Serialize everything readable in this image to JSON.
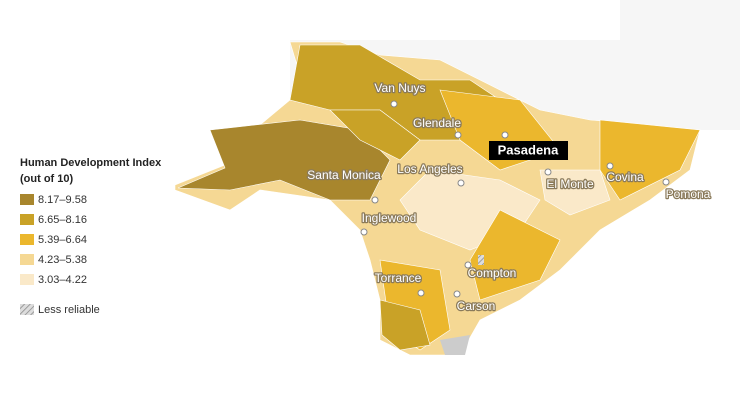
{
  "legend": {
    "title": [
      "Human Development Index",
      "(out of 10)"
    ],
    "items": [
      {
        "label": "8.17–9.58",
        "color": "#a8862d"
      },
      {
        "label": "6.65–8.16",
        "color": "#c9a227"
      },
      {
        "label": "5.39–6.64",
        "color": "#ebb72d"
      },
      {
        "label": "4.23–5.38",
        "color": "#f5d894"
      },
      {
        "label": "3.03–4.22",
        "color": "#fae9c9"
      }
    ],
    "less_reliable": "Less reliable"
  },
  "cities": [
    "Van Nuys",
    "Glendale",
    "Santa Monica",
    "Los Angeles",
    "Pasadena",
    "El Monte",
    "Covina",
    "Pomona",
    "Inglewood",
    "Compton",
    "Torrance",
    "Carson"
  ]
}
